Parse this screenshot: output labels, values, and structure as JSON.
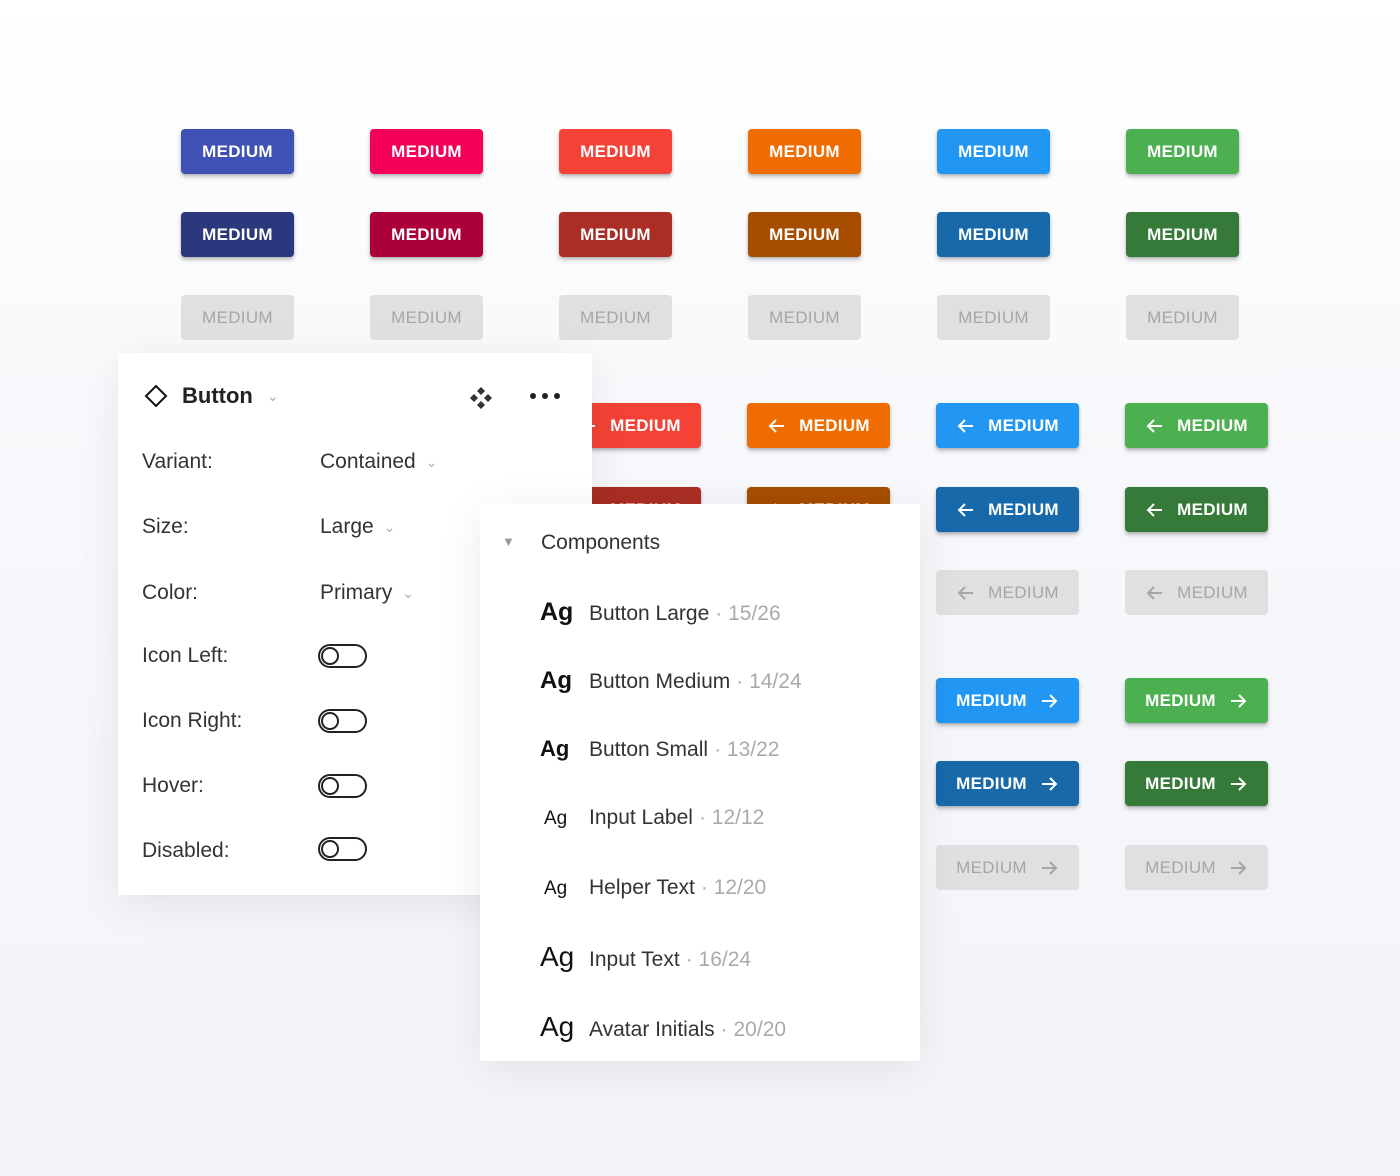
{
  "button_label": "MEDIUM",
  "colors": {
    "main": [
      "#3f51b5",
      "#f50057",
      "#f44336",
      "#ef6c00",
      "#2196f3",
      "#4caf50"
    ],
    "dark": [
      "#2c387e",
      "#ab003c",
      "#aa2e25",
      "#a64d00",
      "#1769aa",
      "#357a38"
    ],
    "disabled": "#e0e0e0",
    "disabled_text": "#a6a6a6"
  },
  "props_panel": {
    "title": "Button",
    "rows": [
      {
        "label": "Variant:",
        "value": "Contained"
      },
      {
        "label": "Size:",
        "value": "Large"
      },
      {
        "label": "Color:",
        "value": "Primary"
      }
    ],
    "toggles": [
      {
        "label": "Icon Left:",
        "on": false
      },
      {
        "label": "Icon Right:",
        "on": false
      },
      {
        "label": "Hover:",
        "on": false
      },
      {
        "label": "Disabled:",
        "on": false
      }
    ]
  },
  "components_panel": {
    "title": "Components",
    "items": [
      {
        "sample": "Ag",
        "name": "Button Large",
        "metric": "· 15/26"
      },
      {
        "sample": "Ag",
        "name": "Button Medium",
        "metric": "· 14/24"
      },
      {
        "sample": "Ag",
        "name": "Button Small",
        "metric": "· 13/22"
      },
      {
        "sample": "Ag",
        "name": "Input Label",
        "metric": "· 12/12"
      },
      {
        "sample": "Ag",
        "name": "Helper Text",
        "metric": "· 12/20"
      },
      {
        "sample": "Ag",
        "name": "Input Text",
        "metric": "· 16/24"
      },
      {
        "sample": "Ag",
        "name": "Avatar Initials",
        "metric": "· 20/20"
      }
    ]
  }
}
